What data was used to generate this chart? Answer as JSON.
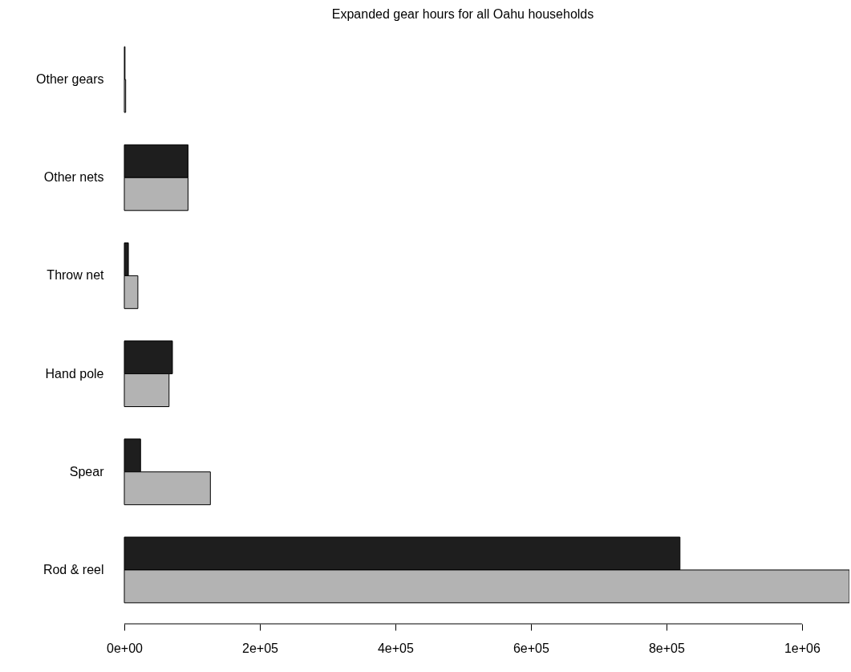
{
  "chart_data": {
    "type": "bar",
    "orientation": "horizontal",
    "title": "Expanded gear hours for all Oahu households",
    "categories": [
      "Other gears",
      "Other nets",
      "Throw net",
      "Hand pole",
      "Spear",
      "Rod & reel"
    ],
    "series": [
      {
        "color": "#1e1e1e",
        "values": [
          1000,
          94000,
          6000,
          71000,
          24000,
          820000
        ]
      },
      {
        "color": "#b3b3b3",
        "values": [
          2000,
          94000,
          20000,
          66000,
          127000,
          1070000
        ]
      }
    ],
    "xlim": [
      0,
      1070000
    ],
    "xticks": [
      {
        "value": 0,
        "label": "0e+00"
      },
      {
        "value": 200000,
        "label": "2e+05"
      },
      {
        "value": 400000,
        "label": "4e+05"
      },
      {
        "value": 600000,
        "label": "6e+05"
      },
      {
        "value": 800000,
        "label": "8e+05"
      },
      {
        "value": 1000000,
        "label": "1e+06"
      }
    ],
    "grid": false
  }
}
